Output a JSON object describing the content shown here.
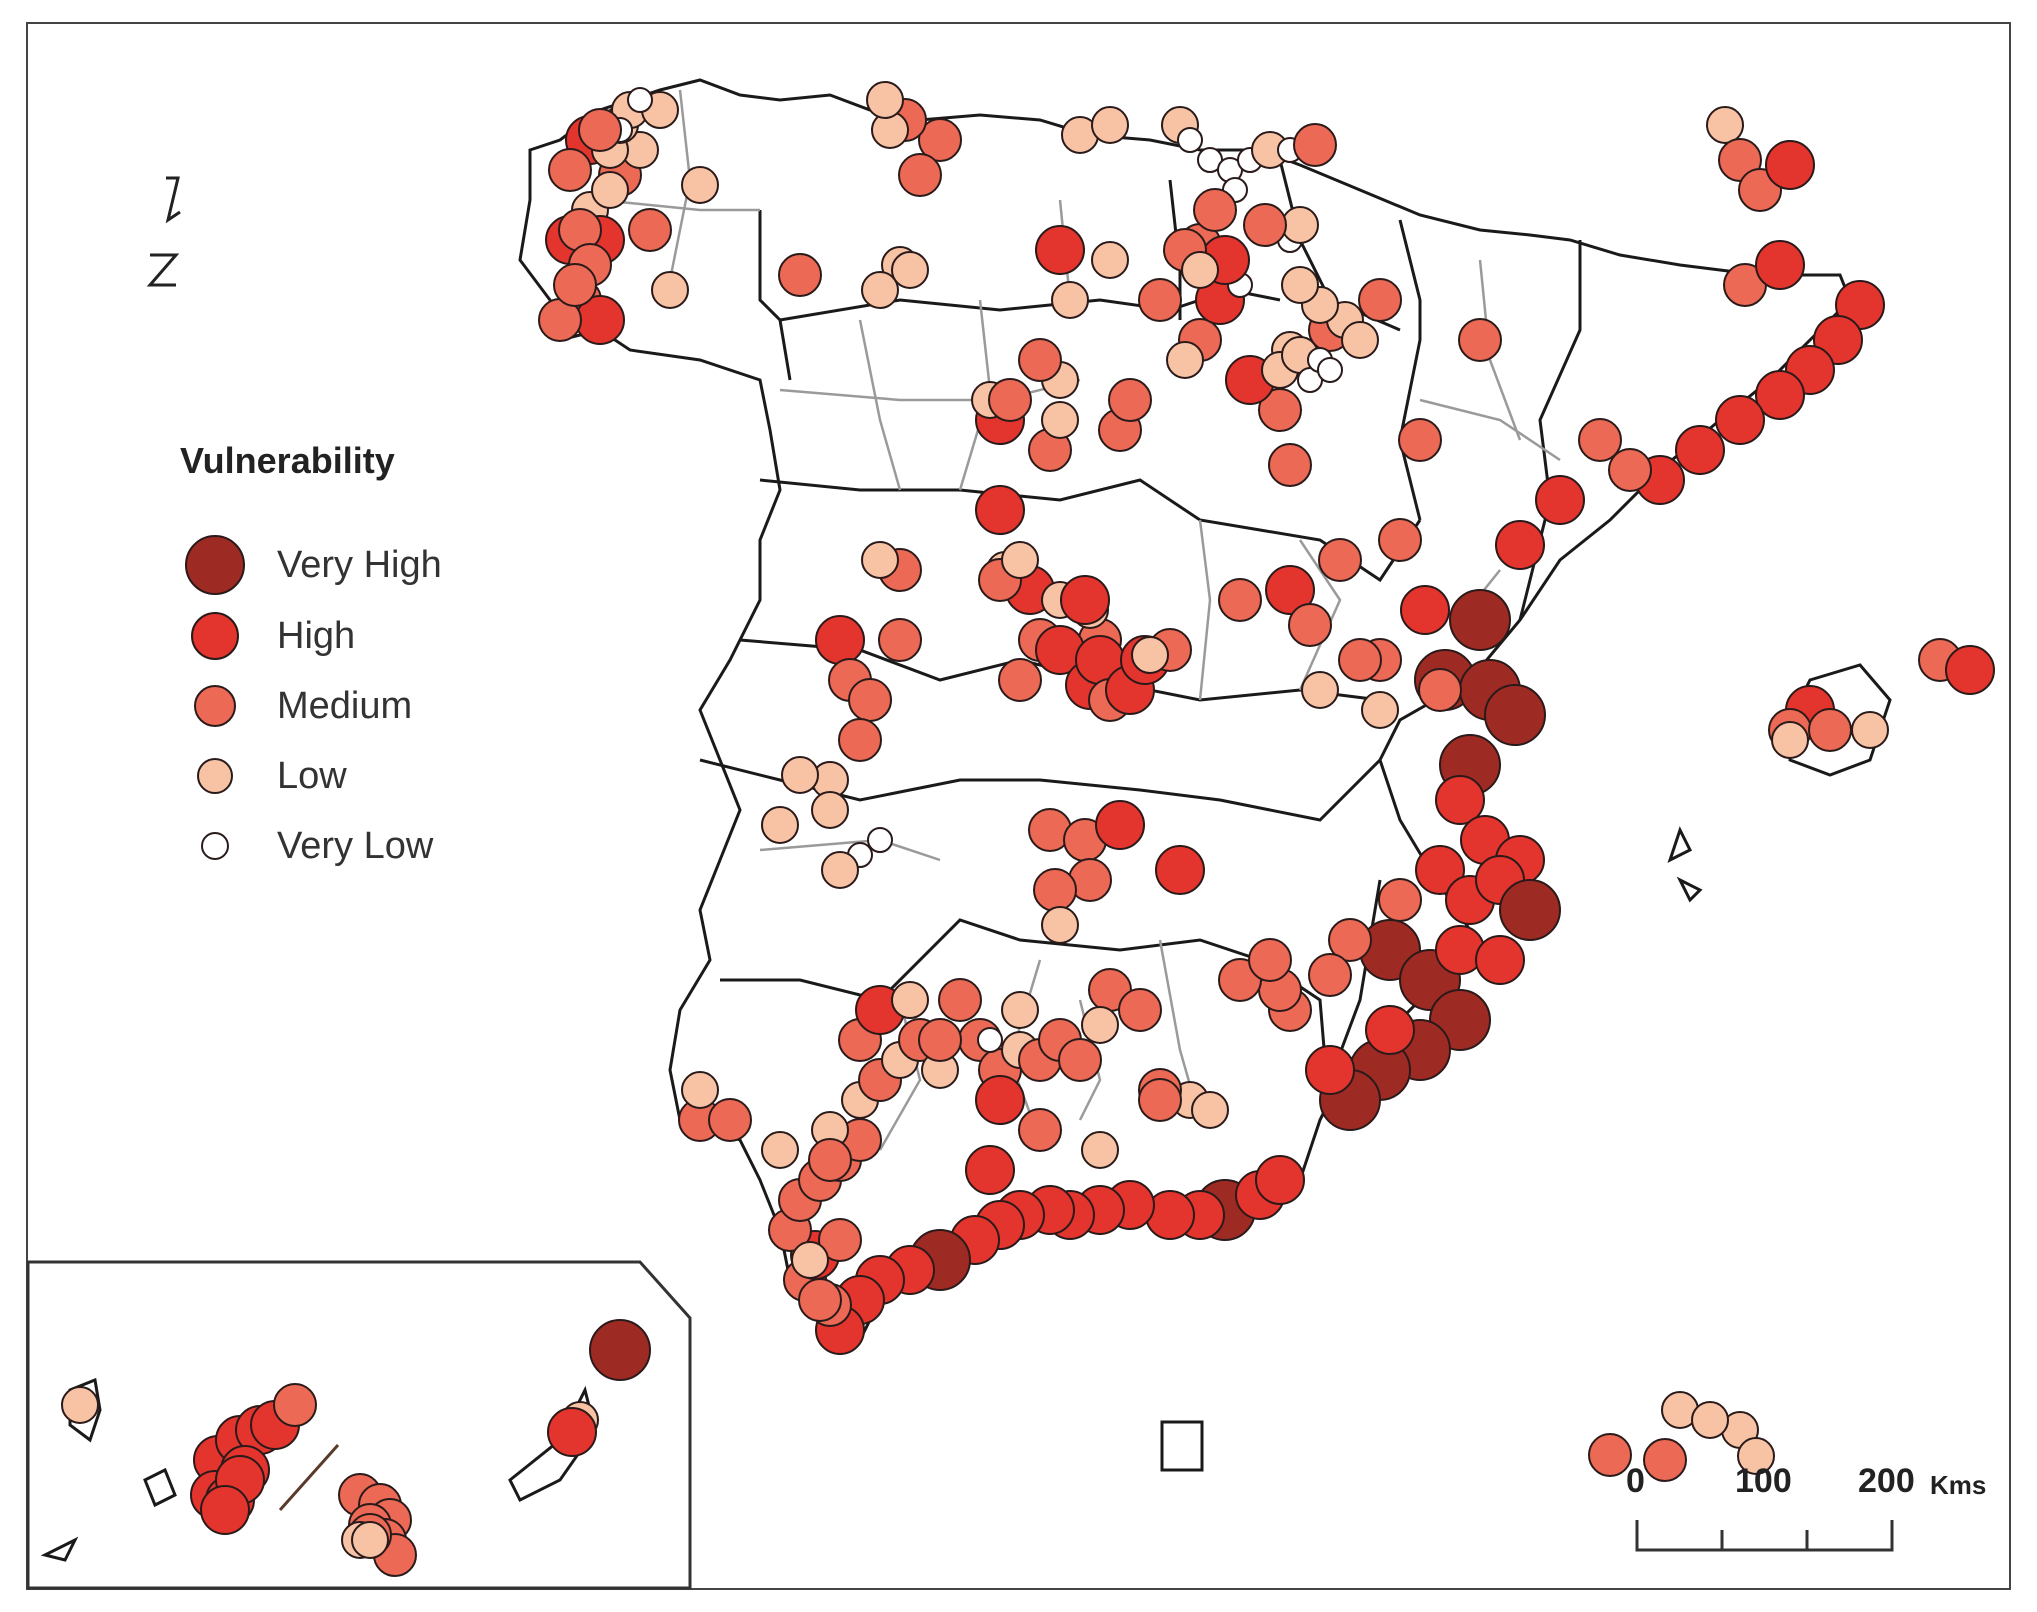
{
  "legend": {
    "title": "Vulnerability",
    "items": [
      {
        "label": "Very High",
        "color": "#9e2a24"
      },
      {
        "label": "High",
        "color": "#e3342d"
      },
      {
        "label": "Medium",
        "color": "#ec6a55"
      },
      {
        "label": "Low",
        "color": "#f8c3a5"
      },
      {
        "label": "Very Low",
        "color": "#ffffff"
      }
    ]
  },
  "scale_bar": {
    "ticks": [
      "0",
      "100",
      "200"
    ],
    "unit": "Kms"
  },
  "north_arrow": {
    "icon": "north-arrow-icon"
  }
}
